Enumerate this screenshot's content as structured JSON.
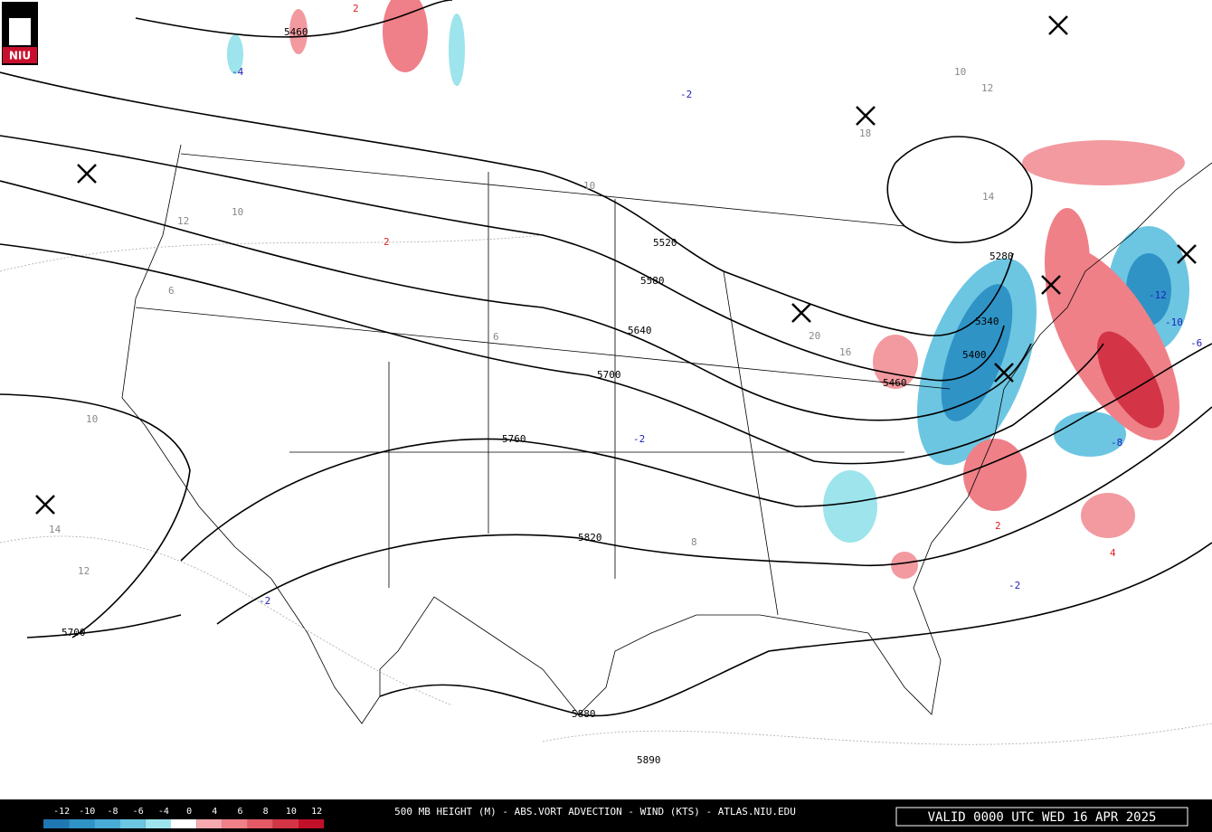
{
  "logo": "NIU",
  "footer": {
    "title": "500 MB HEIGHT (M) - ABS.VORT ADVECTION - WIND (KTS) - ATLAS.NIU.EDU",
    "valid": "VALID 0000 UTC WED 16 APR 2025"
  },
  "colorbar": {
    "levels": [
      -12,
      -10,
      -8,
      -6,
      -4,
      0,
      4,
      6,
      8,
      10,
      12
    ],
    "colors": [
      "#1f78b4",
      "#2f93c6",
      "#48acd6",
      "#6cc6e2",
      "#9de4ec",
      "#ffffff",
      "#f6a9ae",
      "#ef8088",
      "#e35a66",
      "#d33446",
      "#c0102a"
    ]
  },
  "height_labels": [
    "5460",
    "5520",
    "5580",
    "5640",
    "5700",
    "5760",
    "5820",
    "5880",
    "5890",
    "5280",
    "5340",
    "5400",
    "5460",
    "5700"
  ],
  "vort_labels": [
    "2",
    "2",
    "-4",
    "-2",
    "10",
    "12",
    "10",
    "18",
    "14",
    "12",
    "10",
    "6",
    "10",
    "14",
    "12",
    "-12",
    "-10",
    "-8",
    "-6",
    "2",
    "4",
    "8",
    "6",
    "-2",
    "-2",
    "16",
    "20",
    "-2"
  ]
}
